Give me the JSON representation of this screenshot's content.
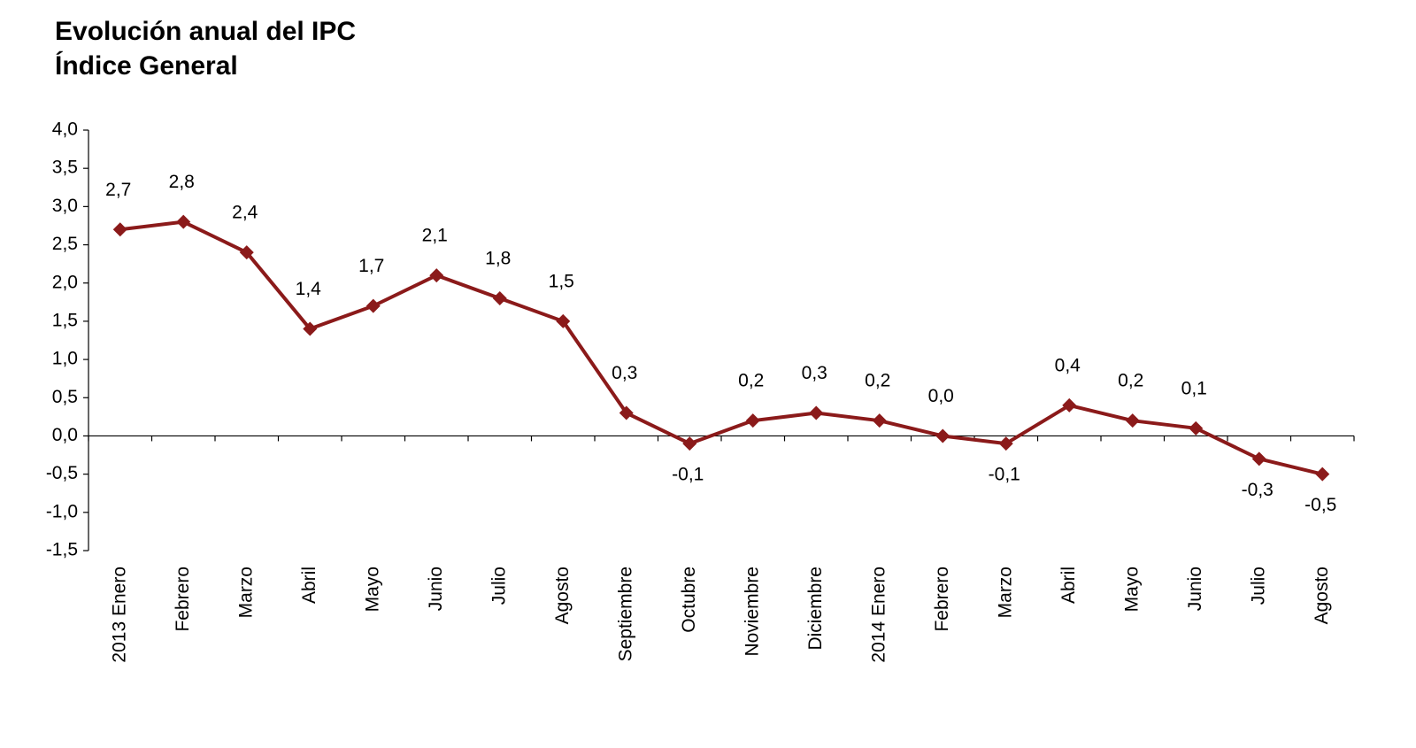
{
  "chart_data": {
    "type": "line",
    "title": "Evolución anual del IPC",
    "subtitle": "Índice General",
    "categories": [
      "2013 Enero",
      "Febrero",
      "Marzo",
      "Abril",
      "Mayo",
      "Junio",
      "Julio",
      "Agosto",
      "Septiembre",
      "Octubre",
      "Noviembre",
      "Diciembre",
      "2014 Enero",
      "Febrero",
      "Marzo",
      "Abril",
      "Mayo",
      "Junio",
      "Julio",
      "Agosto"
    ],
    "values": [
      2.7,
      2.8,
      2.4,
      1.4,
      1.7,
      2.1,
      1.8,
      1.5,
      0.3,
      -0.1,
      0.2,
      0.3,
      0.2,
      0.0,
      -0.1,
      0.4,
      0.2,
      0.1,
      -0.3,
      -0.5
    ],
    "value_labels": [
      "2,7",
      "2,8",
      "2,4",
      "1,4",
      "1,7",
      "2,1",
      "1,8",
      "1,5",
      "0,3",
      "-0,1",
      "0,2",
      "0,3",
      "0,2",
      "0,0",
      "-0,1",
      "0,4",
      "0,2",
      "0,1",
      "-0,3",
      "-0,5"
    ],
    "color": "#8b1a1a",
    "ylim": [
      -1.5,
      4.0
    ],
    "yticks": [
      {
        "value": -1.5,
        "label": "-1,5"
      },
      {
        "value": -1.0,
        "label": "-1,0"
      },
      {
        "value": -0.5,
        "label": "-0,5"
      },
      {
        "value": 0,
        "label": "0,0"
      },
      {
        "value": 0.5,
        "label": "0,5"
      },
      {
        "value": 1.0,
        "label": "1,0"
      },
      {
        "value": 1.5,
        "label": "1,5"
      },
      {
        "value": 2.0,
        "label": "2,0"
      },
      {
        "value": 2.5,
        "label": "2,5"
      },
      {
        "value": 3.0,
        "label": "3,0"
      },
      {
        "value": 3.5,
        "label": "3,5"
      },
      {
        "value": 4.0,
        "label": "4,0"
      }
    ],
    "grid": false
  }
}
